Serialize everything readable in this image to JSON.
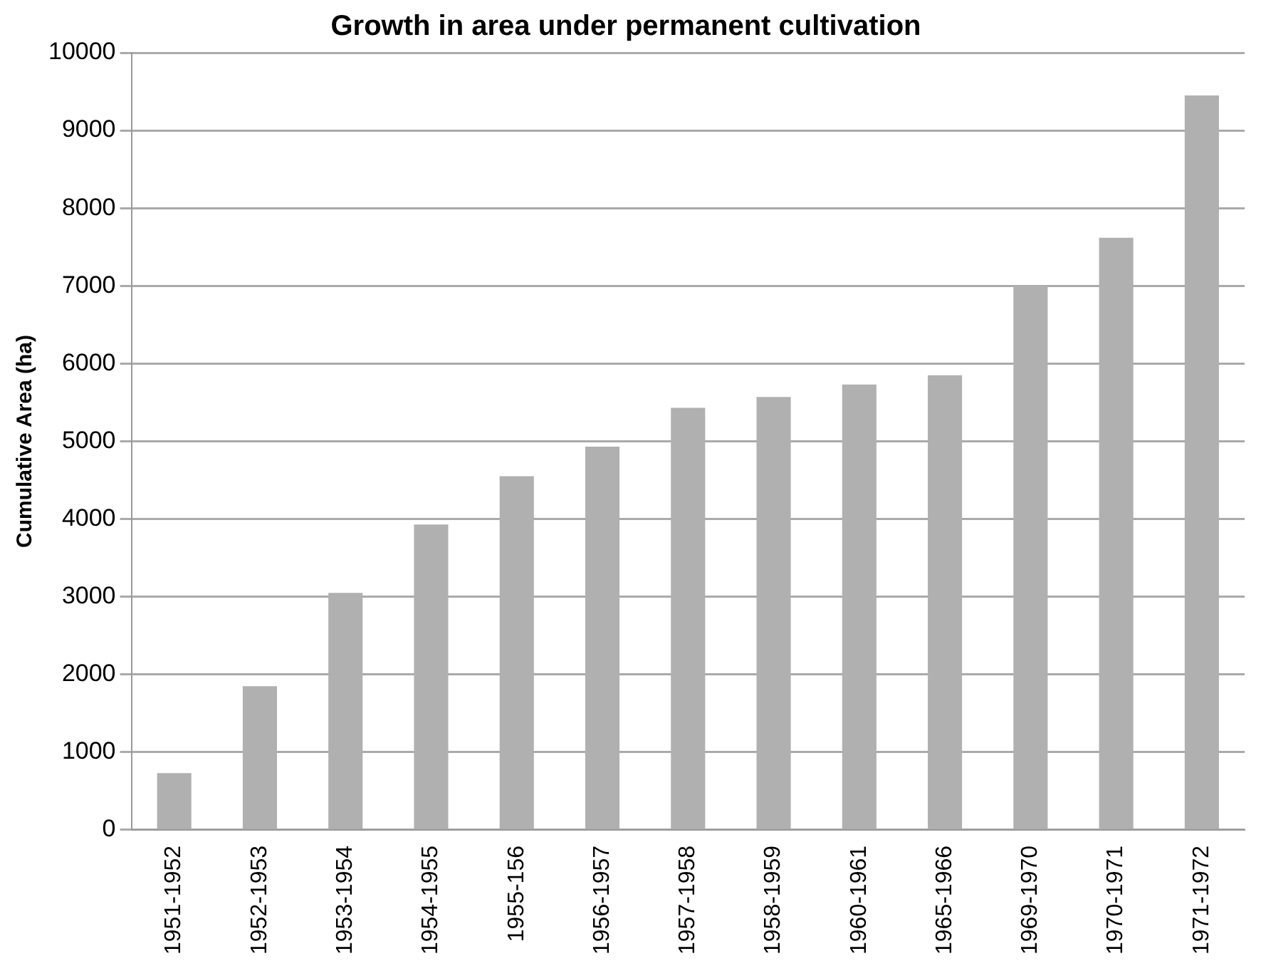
{
  "chart_data": {
    "type": "bar",
    "title": "Growth in area under permanent cultivation",
    "ylabel": "Cumulative Area (ha)",
    "categories": [
      "1951-1952",
      "1952-1953",
      "1953-1954",
      "1954-1955",
      "1955-156",
      "1956-1957",
      "1957-1958",
      "1958-1959",
      "1960-1961",
      "1965-1966",
      "1969-1970",
      "1970-1971",
      "1971-1972"
    ],
    "values": [
      730,
      1850,
      3050,
      3930,
      4550,
      4930,
      5430,
      5570,
      5730,
      5850,
      7000,
      7620,
      9450
    ],
    "color": "#b0b0b0",
    "ylim": [
      0,
      10000
    ],
    "yticks": [
      0,
      1000,
      2000,
      3000,
      4000,
      5000,
      6000,
      7000,
      8000,
      9000,
      10000
    ],
    "grid": "y"
  }
}
